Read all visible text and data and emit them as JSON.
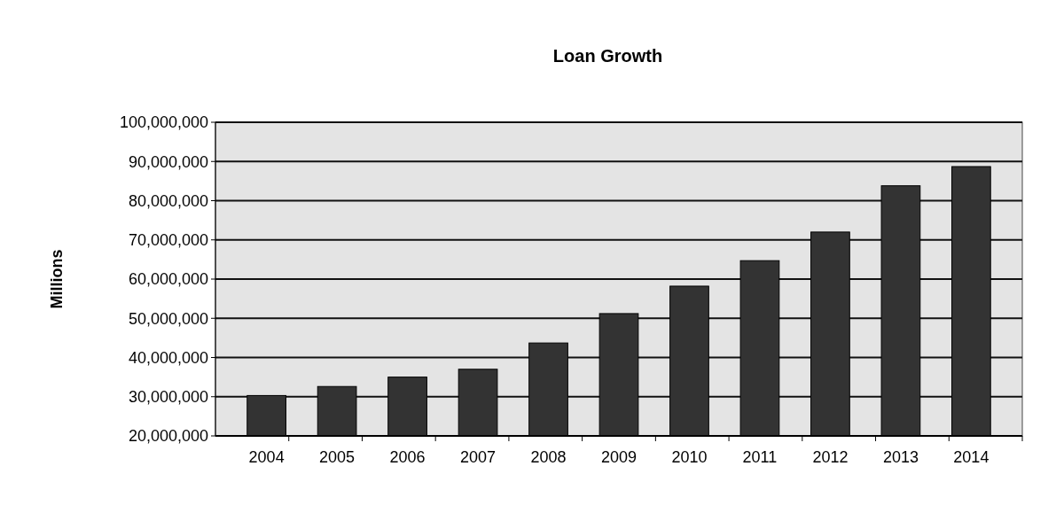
{
  "chart_data": {
    "type": "bar",
    "title": "Loan Growth",
    "ylabel": "Millions",
    "categories": [
      "2004",
      "2005",
      "2006",
      "2007",
      "2008",
      "2009",
      "2010",
      "2011",
      "2012",
      "2013",
      "2014"
    ],
    "values": [
      30300000,
      32600000,
      35000000,
      37000000,
      43700000,
      51200000,
      58200000,
      64700000,
      72000000,
      83800000,
      88700000
    ],
    "color": "#333333",
    "ylim": [
      20000000,
      100000000
    ],
    "yticks": [
      {
        "value": 20000000,
        "label": "20,000,000"
      },
      {
        "value": 30000000,
        "label": "30,000,000"
      },
      {
        "value": 40000000,
        "label": "40,000,000"
      },
      {
        "value": 50000000,
        "label": "50,000,000"
      },
      {
        "value": 60000000,
        "label": "60,000,000"
      },
      {
        "value": 70000000,
        "label": "70,000,000"
      },
      {
        "value": 80000000,
        "label": "80,000,000"
      },
      {
        "value": 90000000,
        "label": "90,000,000"
      },
      {
        "value": 100000000,
        "label": "100,000,000"
      }
    ],
    "grid": "y"
  }
}
